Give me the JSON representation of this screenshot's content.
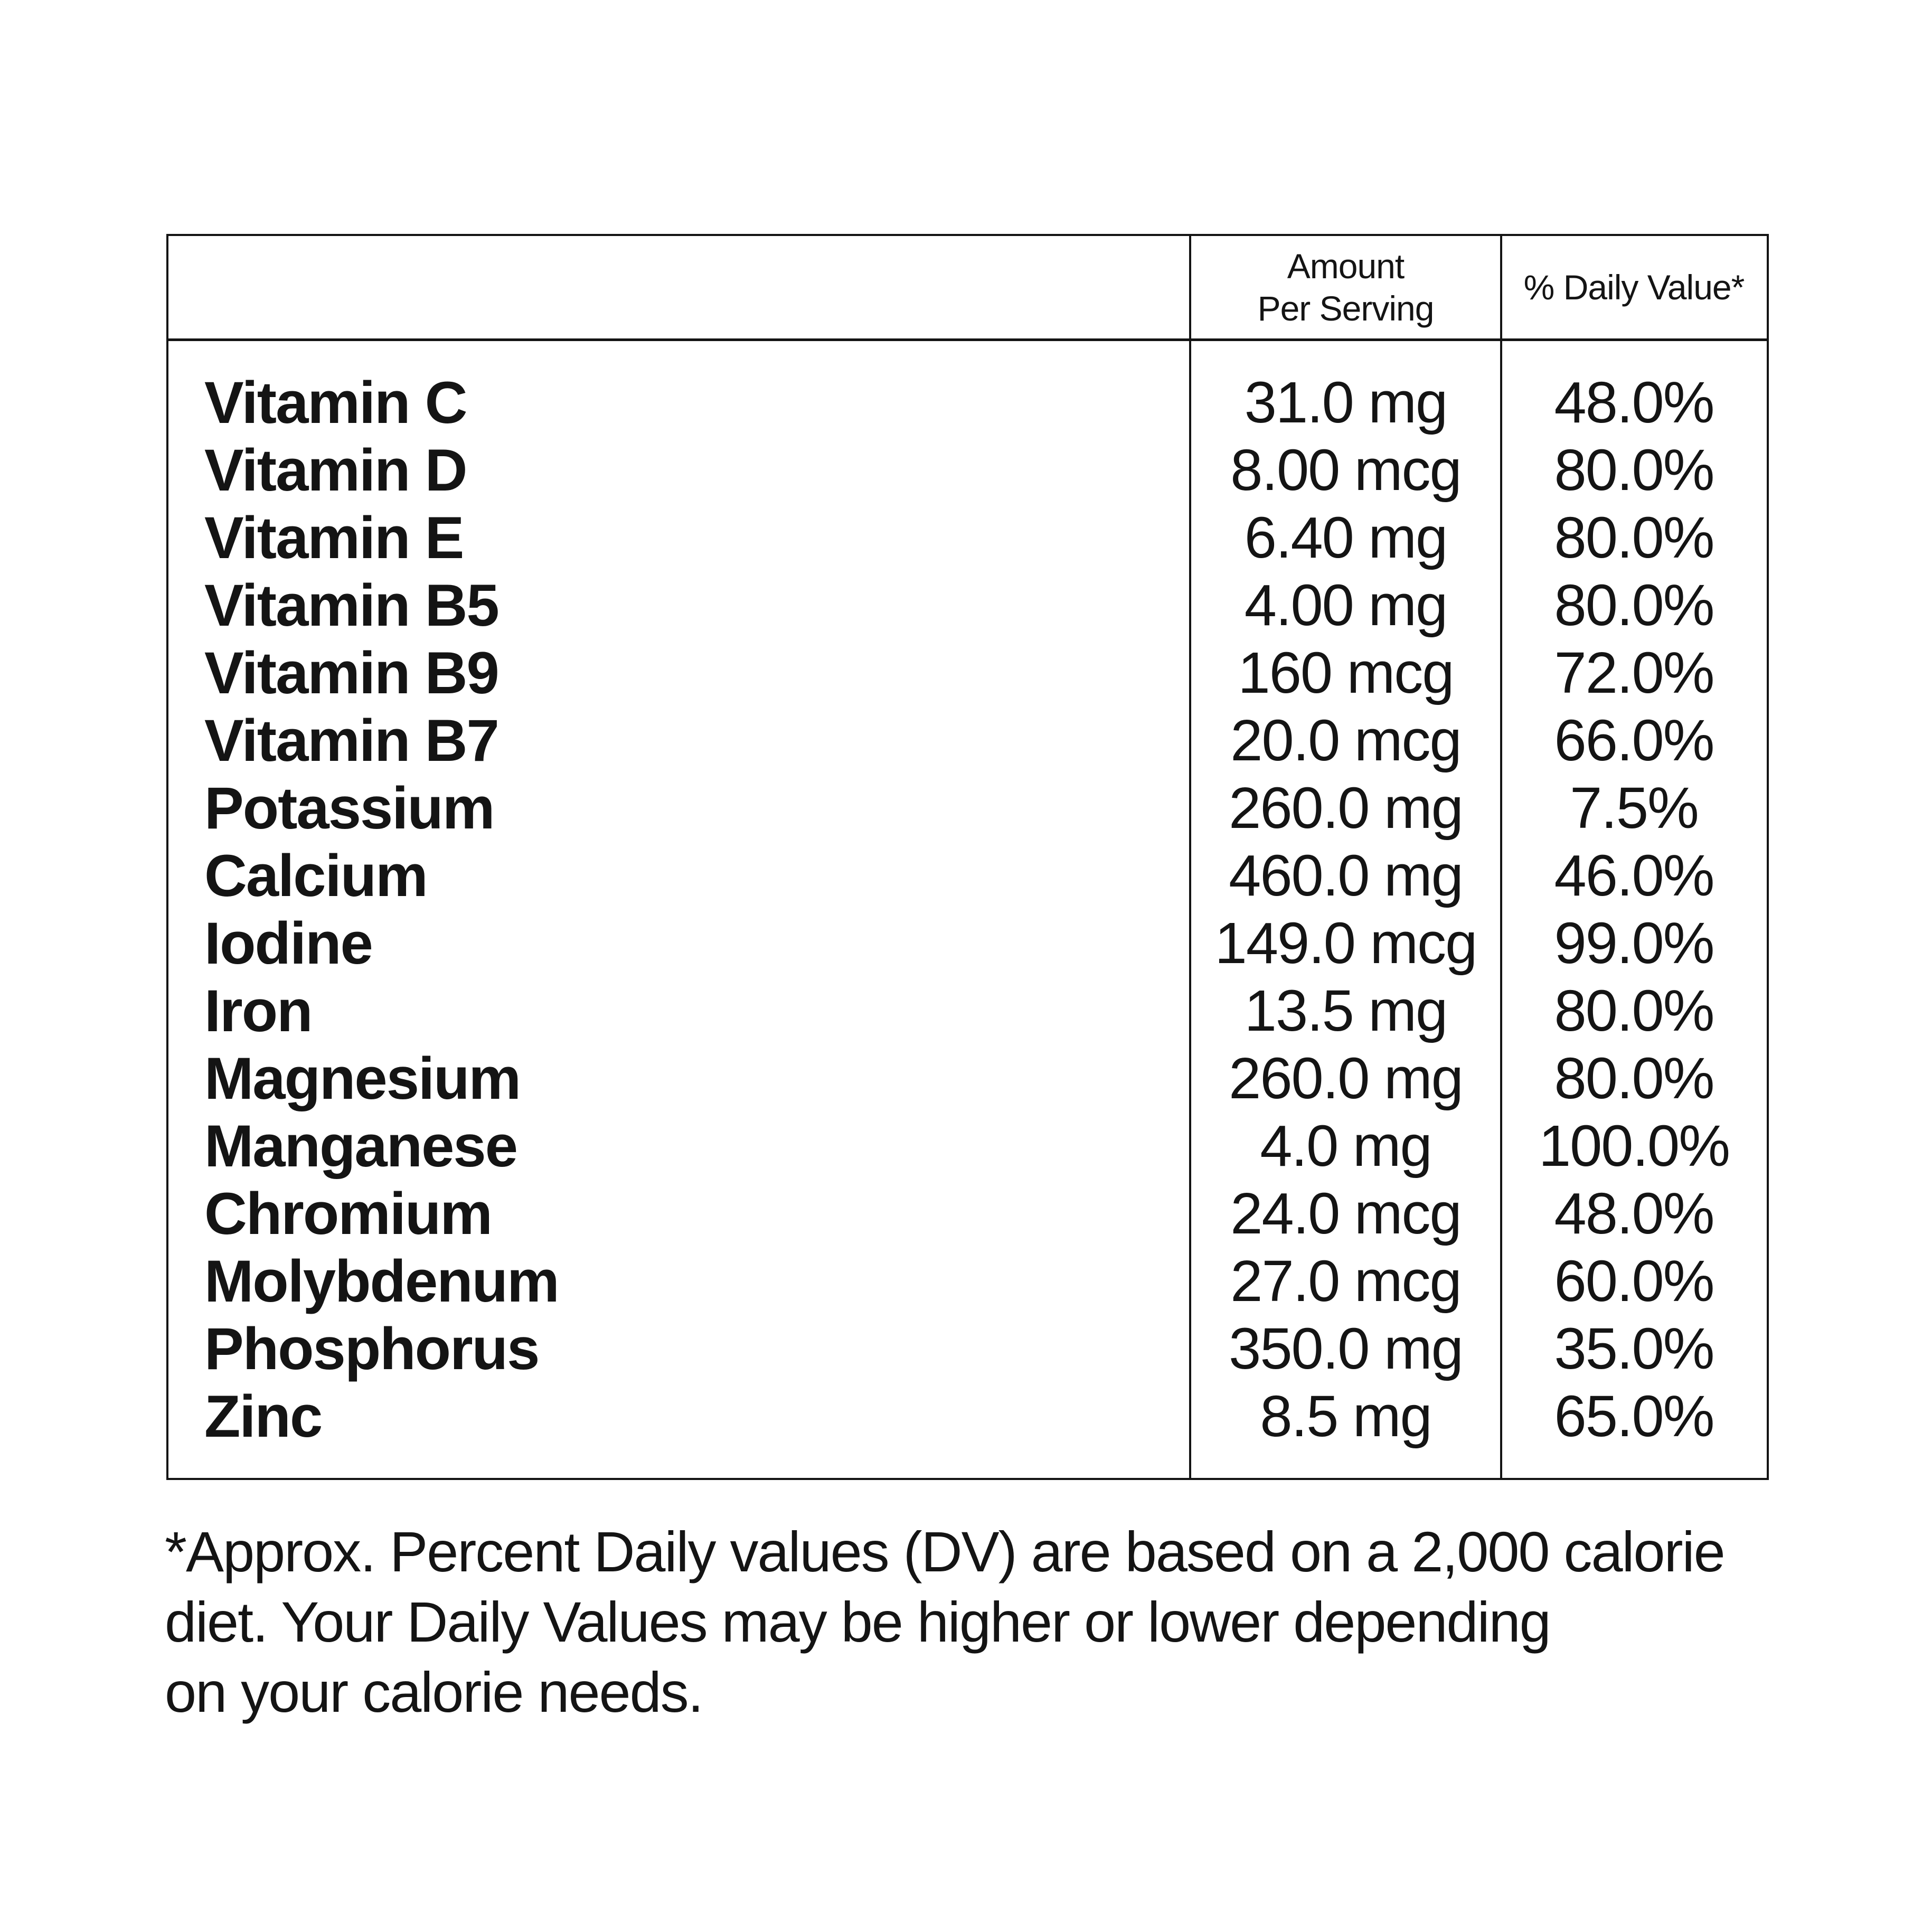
{
  "page": {
    "background_color": "#ffffff",
    "text_color": "#141414",
    "border_color": "#141414"
  },
  "table": {
    "header": {
      "nutrient_col": "",
      "amount_per_serving": [
        "Amount",
        "Per Serving"
      ],
      "daily_value": "% Daily Value*"
    },
    "rows": [
      {
        "nutrient": "Vitamin C",
        "amount": "31.0 mg",
        "daily_value": "48.0%"
      },
      {
        "nutrient": "Vitamin D",
        "amount": "8.00 mcg",
        "daily_value": "80.0%"
      },
      {
        "nutrient": "Vitamin E",
        "amount": "6.40 mg",
        "daily_value": "80.0%"
      },
      {
        "nutrient": "Vitamin B5",
        "amount": "4.00 mg",
        "daily_value": "80.0%"
      },
      {
        "nutrient": "Vitamin B9",
        "amount": "160 mcg",
        "daily_value": "72.0%"
      },
      {
        "nutrient": "Vitamin B7",
        "amount": "20.0 mcg",
        "daily_value": "66.0%"
      },
      {
        "nutrient": "Potassium",
        "amount": "260.0 mg",
        "daily_value": "7.5%"
      },
      {
        "nutrient": "Calcium",
        "amount": "460.0 mg",
        "daily_value": "46.0%"
      },
      {
        "nutrient": "Iodine",
        "amount": "149.0 mcg",
        "daily_value": "99.0%"
      },
      {
        "nutrient": "Iron",
        "amount": "13.5 mg",
        "daily_value": "80.0%"
      },
      {
        "nutrient": "Magnesium",
        "amount": "260.0 mg",
        "daily_value": "80.0%"
      },
      {
        "nutrient": "Manganese",
        "amount": "4.0 mg",
        "daily_value": "100.0%"
      },
      {
        "nutrient": "Chromium",
        "amount": "24.0 mcg",
        "daily_value": "48.0%"
      },
      {
        "nutrient": "Molybdenum",
        "amount": "27.0 mcg",
        "daily_value": "60.0%"
      },
      {
        "nutrient": "Phosphorus",
        "amount": "350.0 mg",
        "daily_value": "35.0%"
      },
      {
        "nutrient": "Zinc",
        "amount": "8.5 mg",
        "daily_value": "65.0%"
      }
    ]
  },
  "footnote": {
    "lines": [
      "*Approx. Percent Daily values (DV) are based on a 2,000 calorie",
      "diet. Your Daily Values may be higher or lower depending",
      "on your calorie needs."
    ]
  }
}
